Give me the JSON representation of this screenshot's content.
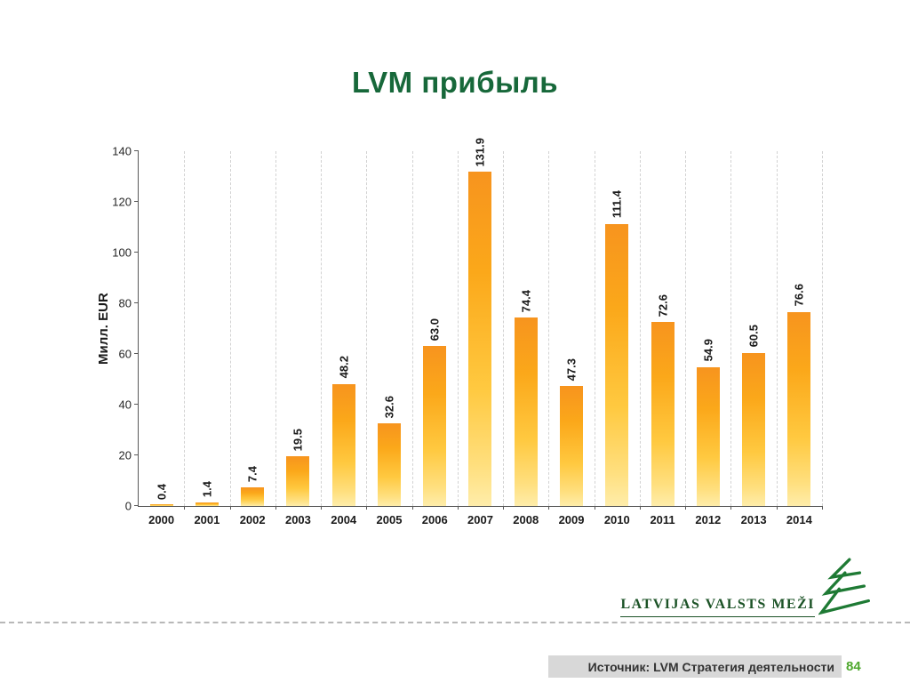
{
  "chart_data": {
    "type": "bar",
    "title": "LVM прибыль",
    "categories": [
      "2000",
      "2001",
      "2002",
      "2003",
      "2004",
      "2005",
      "2006",
      "2007",
      "2008",
      "2009",
      "2010",
      "2011",
      "2012",
      "2013",
      "2014"
    ],
    "values": [
      0.4,
      1.4,
      7.4,
      19.5,
      48.2,
      32.6,
      63.0,
      131.9,
      74.4,
      47.3,
      111.4,
      72.6,
      54.9,
      60.5,
      76.6
    ],
    "value_labels": [
      "0.4",
      "1.4",
      "7.4",
      "19.5",
      "48.2",
      "32.6",
      "63.0",
      "131.9",
      "74.4",
      "47.3",
      "111.4",
      "72.6",
      "54.9",
      "60.5",
      "76.6"
    ],
    "xlabel": "",
    "ylabel": "Милл. EUR",
    "ylim": [
      0,
      140
    ],
    "ytick_step": 20,
    "grid": "vertical-dashed",
    "legend": "none",
    "bar_gradient_top": "#F7941E",
    "bar_gradient_bottom": "#FFEDAA"
  },
  "footer": {
    "source": "Источник: LVM Стратегия деятельности",
    "page": "84"
  },
  "logo": {
    "text": "LATVIJAS VALSTS MEŽI"
  },
  "colors": {
    "title_green": "#17683A",
    "logo_green": "#1C5327",
    "page_number_green": "#4FA82E",
    "bar_orange": "#F7941E"
  }
}
